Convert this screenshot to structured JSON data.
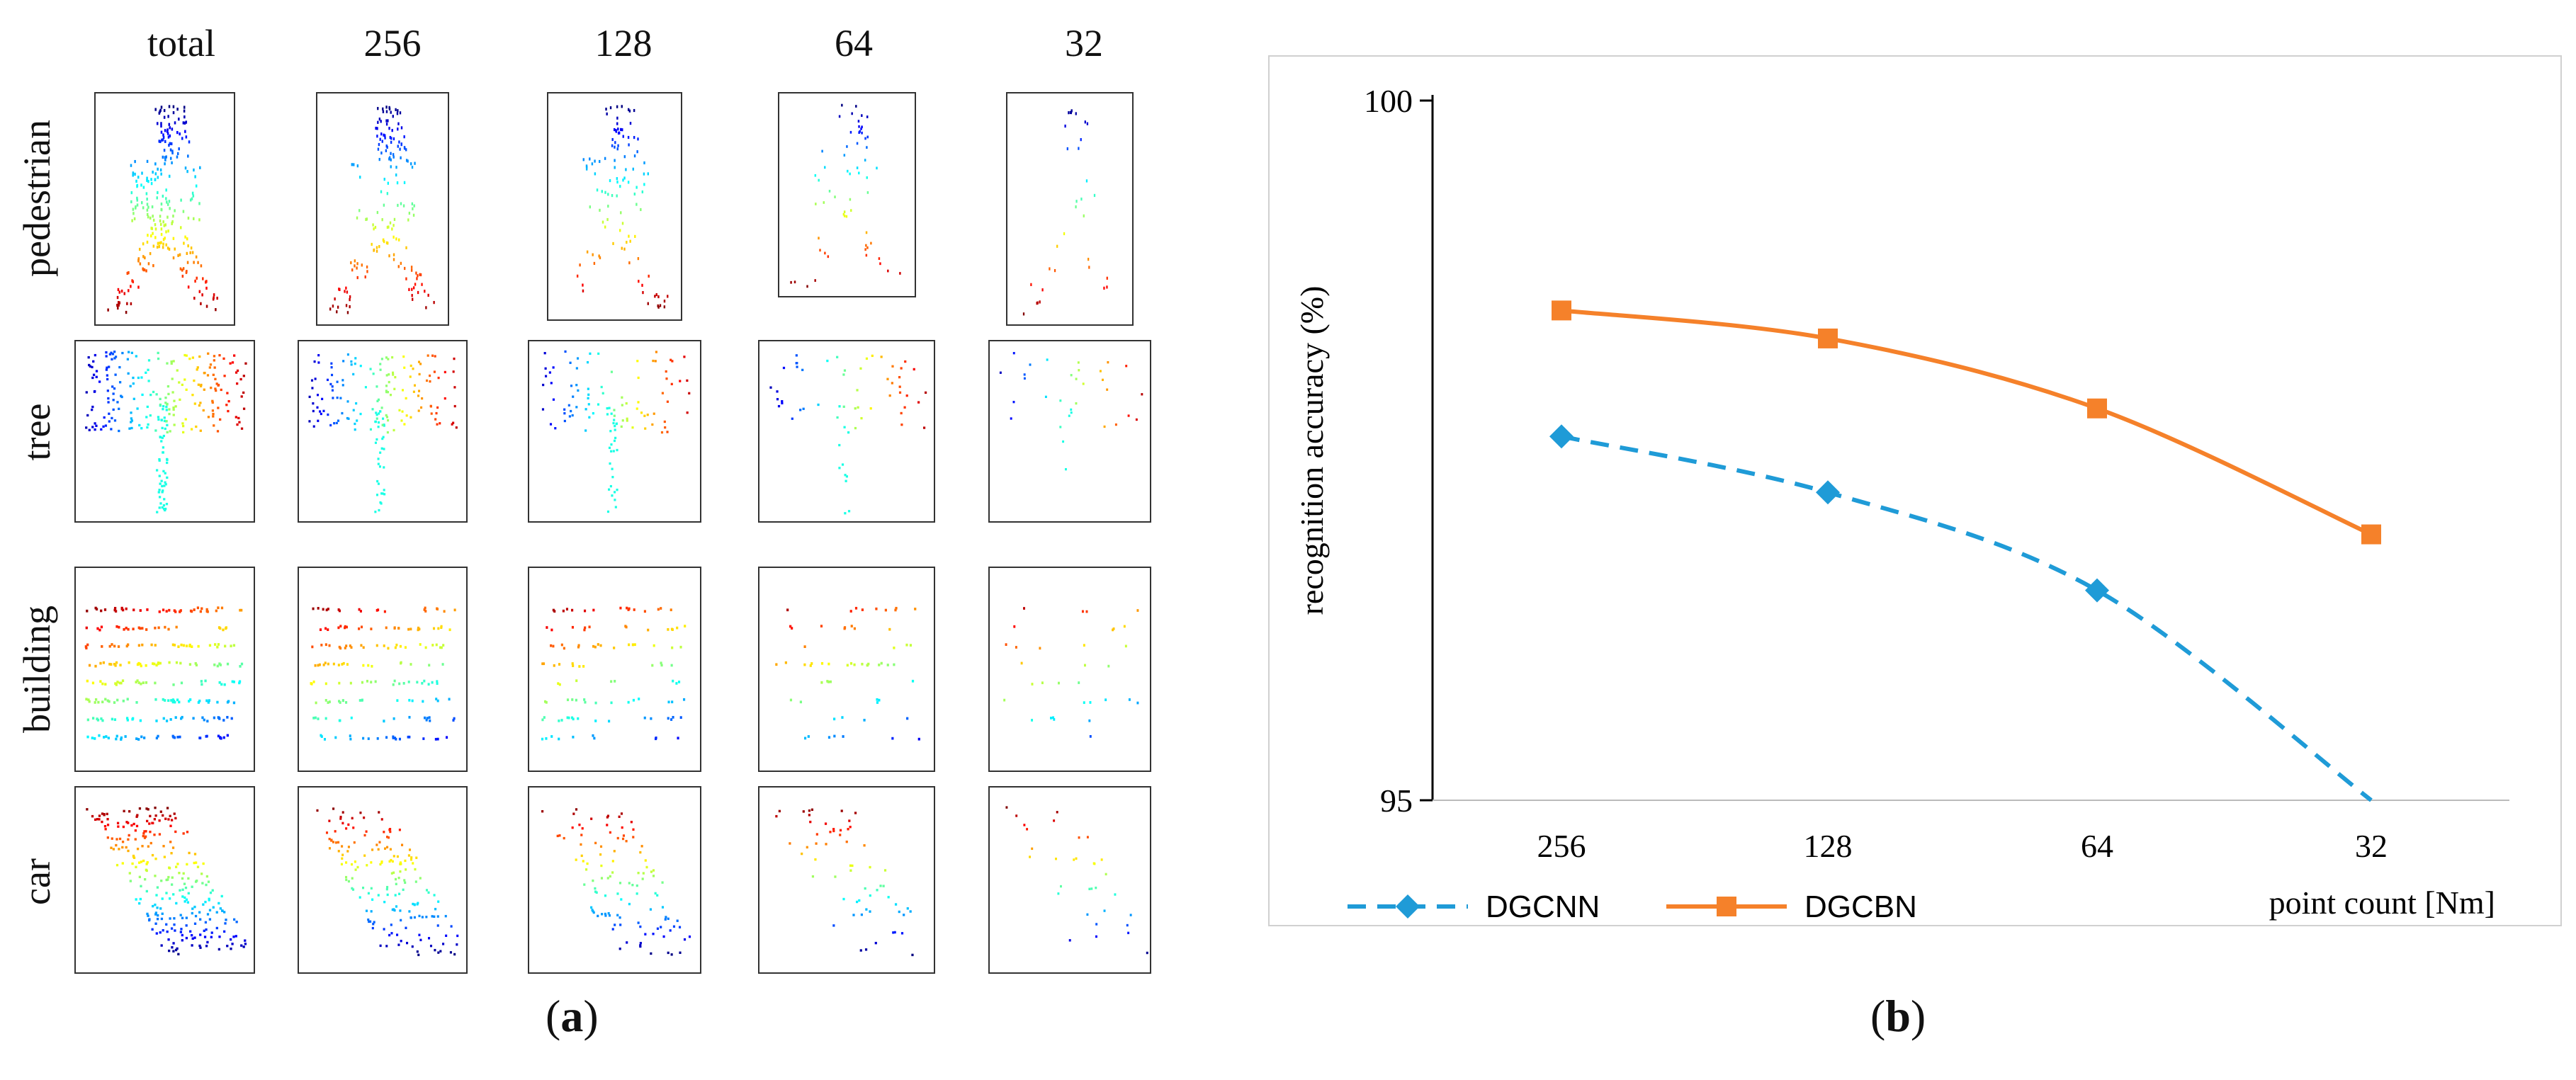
{
  "panel_a": {
    "caption_letter": "a",
    "columns": [
      "total",
      "256",
      "128",
      "64",
      "32"
    ],
    "rows": [
      "pedestrian",
      "tree",
      "building",
      "car"
    ]
  },
  "panel_b": {
    "caption_letter": "b"
  },
  "chart_data": {
    "type": "line",
    "title": "",
    "categories": [
      "256",
      "128",
      "64",
      "32"
    ],
    "xlabel": "point count [Nm]",
    "ylabel": "recognition accuracy  (%)",
    "ylim": [
      95,
      100
    ],
    "y_ticks": [
      "95",
      "100"
    ],
    "grid": false,
    "legend": "bottom-left",
    "series": [
      {
        "name": "DGCNN",
        "values": [
          97.6,
          97.2,
          96.5,
          95.0
        ],
        "color": "#1f9bd7",
        "style": "dashed",
        "marker": "diamond"
      },
      {
        "name": "DGCBN",
        "values": [
          98.5,
          98.3,
          97.8,
          96.9
        ],
        "color": "#f5812a",
        "style": "solid",
        "marker": "square"
      }
    ]
  }
}
